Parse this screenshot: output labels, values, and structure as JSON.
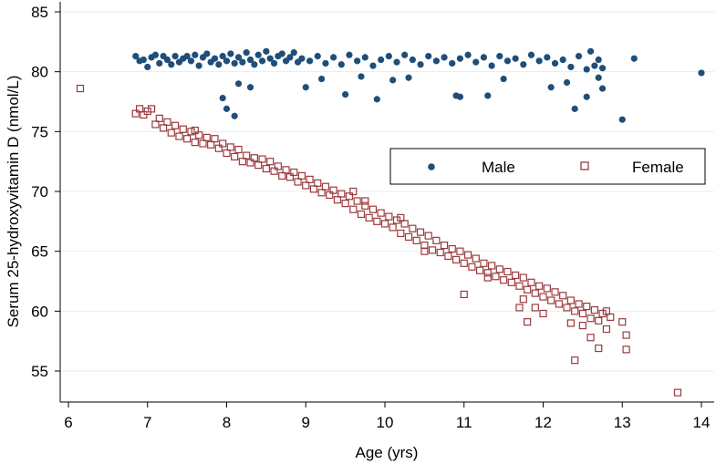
{
  "chart_data": {
    "type": "scatter",
    "title": "",
    "xlabel": "Age (yrs)",
    "ylabel": "Serum 25-hydroxyvitamin D (nmol/L)",
    "xlim": [
      6,
      14
    ],
    "ylim": [
      52.5,
      85
    ],
    "x_ticks": [
      "6",
      "7",
      "8",
      "9",
      "10",
      "11",
      "12",
      "13",
      "14"
    ],
    "y_ticks": [
      "55",
      "60",
      "65",
      "70",
      "75",
      "80",
      "85"
    ],
    "grid": "horizontal",
    "legend_position": "right",
    "series": [
      {
        "name": "Male",
        "marker": "filled-circle",
        "color": "#1f4e79",
        "points": [
          [
            6.85,
            81.3
          ],
          [
            6.9,
            80.9
          ],
          [
            6.95,
            81.0
          ],
          [
            7.0,
            80.4
          ],
          [
            7.05,
            81.2
          ],
          [
            7.1,
            81.4
          ],
          [
            7.15,
            80.7
          ],
          [
            7.2,
            81.3
          ],
          [
            7.25,
            81.0
          ],
          [
            7.3,
            80.6
          ],
          [
            7.35,
            81.3
          ],
          [
            7.4,
            80.8
          ],
          [
            7.45,
            81.1
          ],
          [
            7.5,
            81.3
          ],
          [
            7.55,
            80.9
          ],
          [
            7.6,
            81.4
          ],
          [
            7.65,
            80.5
          ],
          [
            7.7,
            81.2
          ],
          [
            7.75,
            81.5
          ],
          [
            7.8,
            80.8
          ],
          [
            7.85,
            81.1
          ],
          [
            7.9,
            80.6
          ],
          [
            7.95,
            81.3
          ],
          [
            8.0,
            80.9
          ],
          [
            8.05,
            81.5
          ],
          [
            8.1,
            80.7
          ],
          [
            8.15,
            81.2
          ],
          [
            8.2,
            80.8
          ],
          [
            8.25,
            81.6
          ],
          [
            8.3,
            81.0
          ],
          [
            8.35,
            80.6
          ],
          [
            8.4,
            81.4
          ],
          [
            8.45,
            80.9
          ],
          [
            8.5,
            81.7
          ],
          [
            8.55,
            81.1
          ],
          [
            8.6,
            80.7
          ],
          [
            8.65,
            81.3
          ],
          [
            8.7,
            81.5
          ],
          [
            8.75,
            80.9
          ],
          [
            8.8,
            81.2
          ],
          [
            8.85,
            81.6
          ],
          [
            8.9,
            80.8
          ],
          [
            8.95,
            81.1
          ],
          [
            9.05,
            80.9
          ],
          [
            9.15,
            81.3
          ],
          [
            9.25,
            80.7
          ],
          [
            9.35,
            81.2
          ],
          [
            9.45,
            80.6
          ],
          [
            9.55,
            81.4
          ],
          [
            9.65,
            80.9
          ],
          [
            9.75,
            81.2
          ],
          [
            9.85,
            80.5
          ],
          [
            9.95,
            81.0
          ],
          [
            10.05,
            81.3
          ],
          [
            10.15,
            80.8
          ],
          [
            10.25,
            81.4
          ],
          [
            10.35,
            81.0
          ],
          [
            10.45,
            80.6
          ],
          [
            10.55,
            81.3
          ],
          [
            10.65,
            80.9
          ],
          [
            10.75,
            81.2
          ],
          [
            10.85,
            80.7
          ],
          [
            10.95,
            81.1
          ],
          [
            11.05,
            81.4
          ],
          [
            11.15,
            80.8
          ],
          [
            11.25,
            81.2
          ],
          [
            11.35,
            80.5
          ],
          [
            11.45,
            81.3
          ],
          [
            11.55,
            80.9
          ],
          [
            11.65,
            81.1
          ],
          [
            11.75,
            80.6
          ],
          [
            11.85,
            81.4
          ],
          [
            11.95,
            80.9
          ],
          [
            12.05,
            81.2
          ],
          [
            12.15,
            80.7
          ],
          [
            12.25,
            81.0
          ],
          [
            12.35,
            80.4
          ],
          [
            12.45,
            81.3
          ],
          [
            12.55,
            80.2
          ],
          [
            12.6,
            81.7
          ],
          [
            12.65,
            80.5
          ],
          [
            12.7,
            81.0
          ],
          [
            12.75,
            80.3
          ],
          [
            13.15,
            81.1
          ],
          [
            14.0,
            79.9
          ],
          [
            7.95,
            77.8
          ],
          [
            8.0,
            76.9
          ],
          [
            8.1,
            76.3
          ],
          [
            8.15,
            79.0
          ],
          [
            8.3,
            78.7
          ],
          [
            9.0,
            78.7
          ],
          [
            9.2,
            79.4
          ],
          [
            9.5,
            78.1
          ],
          [
            9.7,
            79.6
          ],
          [
            9.9,
            77.7
          ],
          [
            10.1,
            79.3
          ],
          [
            10.3,
            79.5
          ],
          [
            10.9,
            78.0
          ],
          [
            10.95,
            77.9
          ],
          [
            11.3,
            78.0
          ],
          [
            11.5,
            79.4
          ],
          [
            12.1,
            78.7
          ],
          [
            12.3,
            79.1
          ],
          [
            12.4,
            76.9
          ],
          [
            12.55,
            77.9
          ],
          [
            12.7,
            79.5
          ],
          [
            12.75,
            78.6
          ],
          [
            13.0,
            76.0
          ]
        ]
      },
      {
        "name": "Female",
        "marker": "hollow-square",
        "color": "#9b3a3d",
        "points": [
          [
            6.15,
            78.6
          ],
          [
            6.85,
            76.5
          ],
          [
            6.9,
            76.9
          ],
          [
            6.95,
            76.4
          ],
          [
            7.0,
            76.7
          ],
          [
            7.05,
            76.9
          ],
          [
            7.1,
            75.6
          ],
          [
            7.15,
            76.1
          ],
          [
            7.2,
            75.3
          ],
          [
            7.25,
            75.8
          ],
          [
            7.3,
            74.9
          ],
          [
            7.35,
            75.5
          ],
          [
            7.4,
            74.6
          ],
          [
            7.45,
            75.2
          ],
          [
            7.5,
            74.4
          ],
          [
            7.55,
            75.0
          ],
          [
            7.6,
            74.1
          ],
          [
            7.65,
            74.7
          ],
          [
            7.7,
            74.0
          ],
          [
            7.75,
            74.5
          ],
          [
            7.8,
            73.9
          ],
          [
            7.85,
            74.4
          ],
          [
            7.9,
            73.6
          ],
          [
            7.95,
            74.0
          ],
          [
            8.0,
            73.2
          ],
          [
            8.05,
            73.7
          ],
          [
            8.1,
            72.9
          ],
          [
            8.15,
            73.5
          ],
          [
            8.2,
            72.5
          ],
          [
            8.25,
            73.0
          ],
          [
            8.3,
            72.4
          ],
          [
            8.35,
            72.8
          ],
          [
            8.4,
            72.2
          ],
          [
            8.45,
            72.7
          ],
          [
            8.5,
            71.9
          ],
          [
            8.55,
            72.5
          ],
          [
            8.6,
            71.7
          ],
          [
            8.65,
            72.1
          ],
          [
            8.7,
            71.3
          ],
          [
            8.75,
            71.8
          ],
          [
            8.8,
            71.2
          ],
          [
            8.85,
            71.6
          ],
          [
            8.9,
            70.8
          ],
          [
            8.95,
            71.3
          ],
          [
            9.0,
            70.5
          ],
          [
            9.05,
            71.0
          ],
          [
            9.1,
            70.2
          ],
          [
            9.15,
            70.7
          ],
          [
            9.2,
            69.9
          ],
          [
            9.25,
            70.4
          ],
          [
            9.3,
            69.7
          ],
          [
            9.35,
            70.1
          ],
          [
            9.4,
            69.3
          ],
          [
            9.45,
            69.8
          ],
          [
            9.5,
            69.0
          ],
          [
            9.55,
            69.6
          ],
          [
            9.6,
            68.5
          ],
          [
            9.65,
            69.2
          ],
          [
            9.7,
            68.1
          ],
          [
            9.75,
            68.8
          ],
          [
            9.8,
            67.8
          ],
          [
            9.85,
            68.5
          ],
          [
            9.9,
            67.5
          ],
          [
            9.95,
            68.2
          ],
          [
            10.0,
            67.3
          ],
          [
            10.05,
            67.9
          ],
          [
            10.1,
            67.0
          ],
          [
            10.15,
            67.6
          ],
          [
            10.2,
            66.5
          ],
          [
            10.25,
            67.3
          ],
          [
            10.3,
            66.2
          ],
          [
            10.35,
            66.9
          ],
          [
            10.4,
            65.9
          ],
          [
            10.45,
            66.6
          ],
          [
            10.5,
            65.5
          ],
          [
            10.55,
            66.3
          ],
          [
            10.6,
            65.1
          ],
          [
            10.65,
            65.9
          ],
          [
            10.7,
            64.9
          ],
          [
            10.75,
            65.5
          ],
          [
            10.8,
            64.6
          ],
          [
            10.85,
            65.2
          ],
          [
            10.9,
            64.3
          ],
          [
            10.95,
            65.0
          ],
          [
            11.0,
            64.0
          ],
          [
            11.05,
            64.7
          ],
          [
            11.1,
            63.7
          ],
          [
            11.15,
            64.4
          ],
          [
            11.2,
            63.4
          ],
          [
            11.25,
            64.0
          ],
          [
            11.3,
            63.2
          ],
          [
            11.35,
            63.8
          ],
          [
            11.4,
            62.9
          ],
          [
            11.45,
            63.5
          ],
          [
            11.5,
            62.6
          ],
          [
            11.55,
            63.3
          ],
          [
            11.6,
            62.4
          ],
          [
            11.65,
            63.0
          ],
          [
            11.7,
            62.1
          ],
          [
            11.75,
            62.8
          ],
          [
            11.8,
            61.8
          ],
          [
            11.85,
            62.4
          ],
          [
            11.9,
            61.5
          ],
          [
            11.95,
            62.1
          ],
          [
            12.0,
            61.2
          ],
          [
            12.05,
            61.9
          ],
          [
            12.1,
            60.9
          ],
          [
            12.15,
            61.6
          ],
          [
            12.2,
            60.6
          ],
          [
            12.25,
            61.3
          ],
          [
            12.3,
            60.3
          ],
          [
            12.35,
            60.9
          ],
          [
            12.4,
            60.0
          ],
          [
            12.45,
            60.6
          ],
          [
            12.5,
            59.8
          ],
          [
            12.55,
            60.4
          ],
          [
            12.6,
            59.4
          ],
          [
            12.65,
            60.1
          ],
          [
            12.7,
            59.2
          ],
          [
            12.75,
            59.8
          ],
          [
            12.8,
            60.0
          ],
          [
            12.85,
            59.5
          ],
          [
            13.0,
            59.1
          ],
          [
            13.05,
            58.0
          ],
          [
            13.05,
            56.8
          ],
          [
            13.7,
            53.2
          ],
          [
            9.6,
            70.0
          ],
          [
            9.75,
            69.2
          ],
          [
            10.2,
            67.8
          ],
          [
            10.5,
            65.0
          ],
          [
            11.0,
            61.4
          ],
          [
            11.3,
            62.8
          ],
          [
            11.7,
            60.3
          ],
          [
            11.75,
            61.0
          ],
          [
            11.8,
            59.1
          ],
          [
            12.0,
            59.8
          ],
          [
            12.4,
            55.9
          ],
          [
            12.6,
            57.8
          ],
          [
            12.7,
            56.9
          ],
          [
            12.8,
            58.5
          ],
          [
            12.5,
            58.8
          ],
          [
            11.9,
            60.3
          ],
          [
            12.35,
            59.0
          ],
          [
            7.6,
            75.1
          ]
        ]
      }
    ]
  }
}
